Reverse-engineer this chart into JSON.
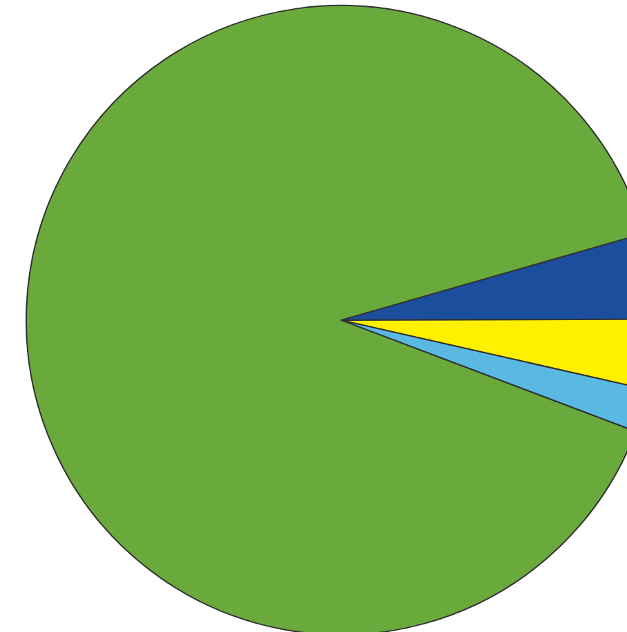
{
  "chart_data": {
    "type": "pie",
    "categories": [
      null,
      null,
      null,
      null
    ],
    "values": [
      4.4,
      3.6,
      2.2,
      89.8
    ],
    "colors": [
      "#1b4f9e",
      "#fff000",
      "#5ab9e3",
      "#6aaa3c"
    ]
  }
}
